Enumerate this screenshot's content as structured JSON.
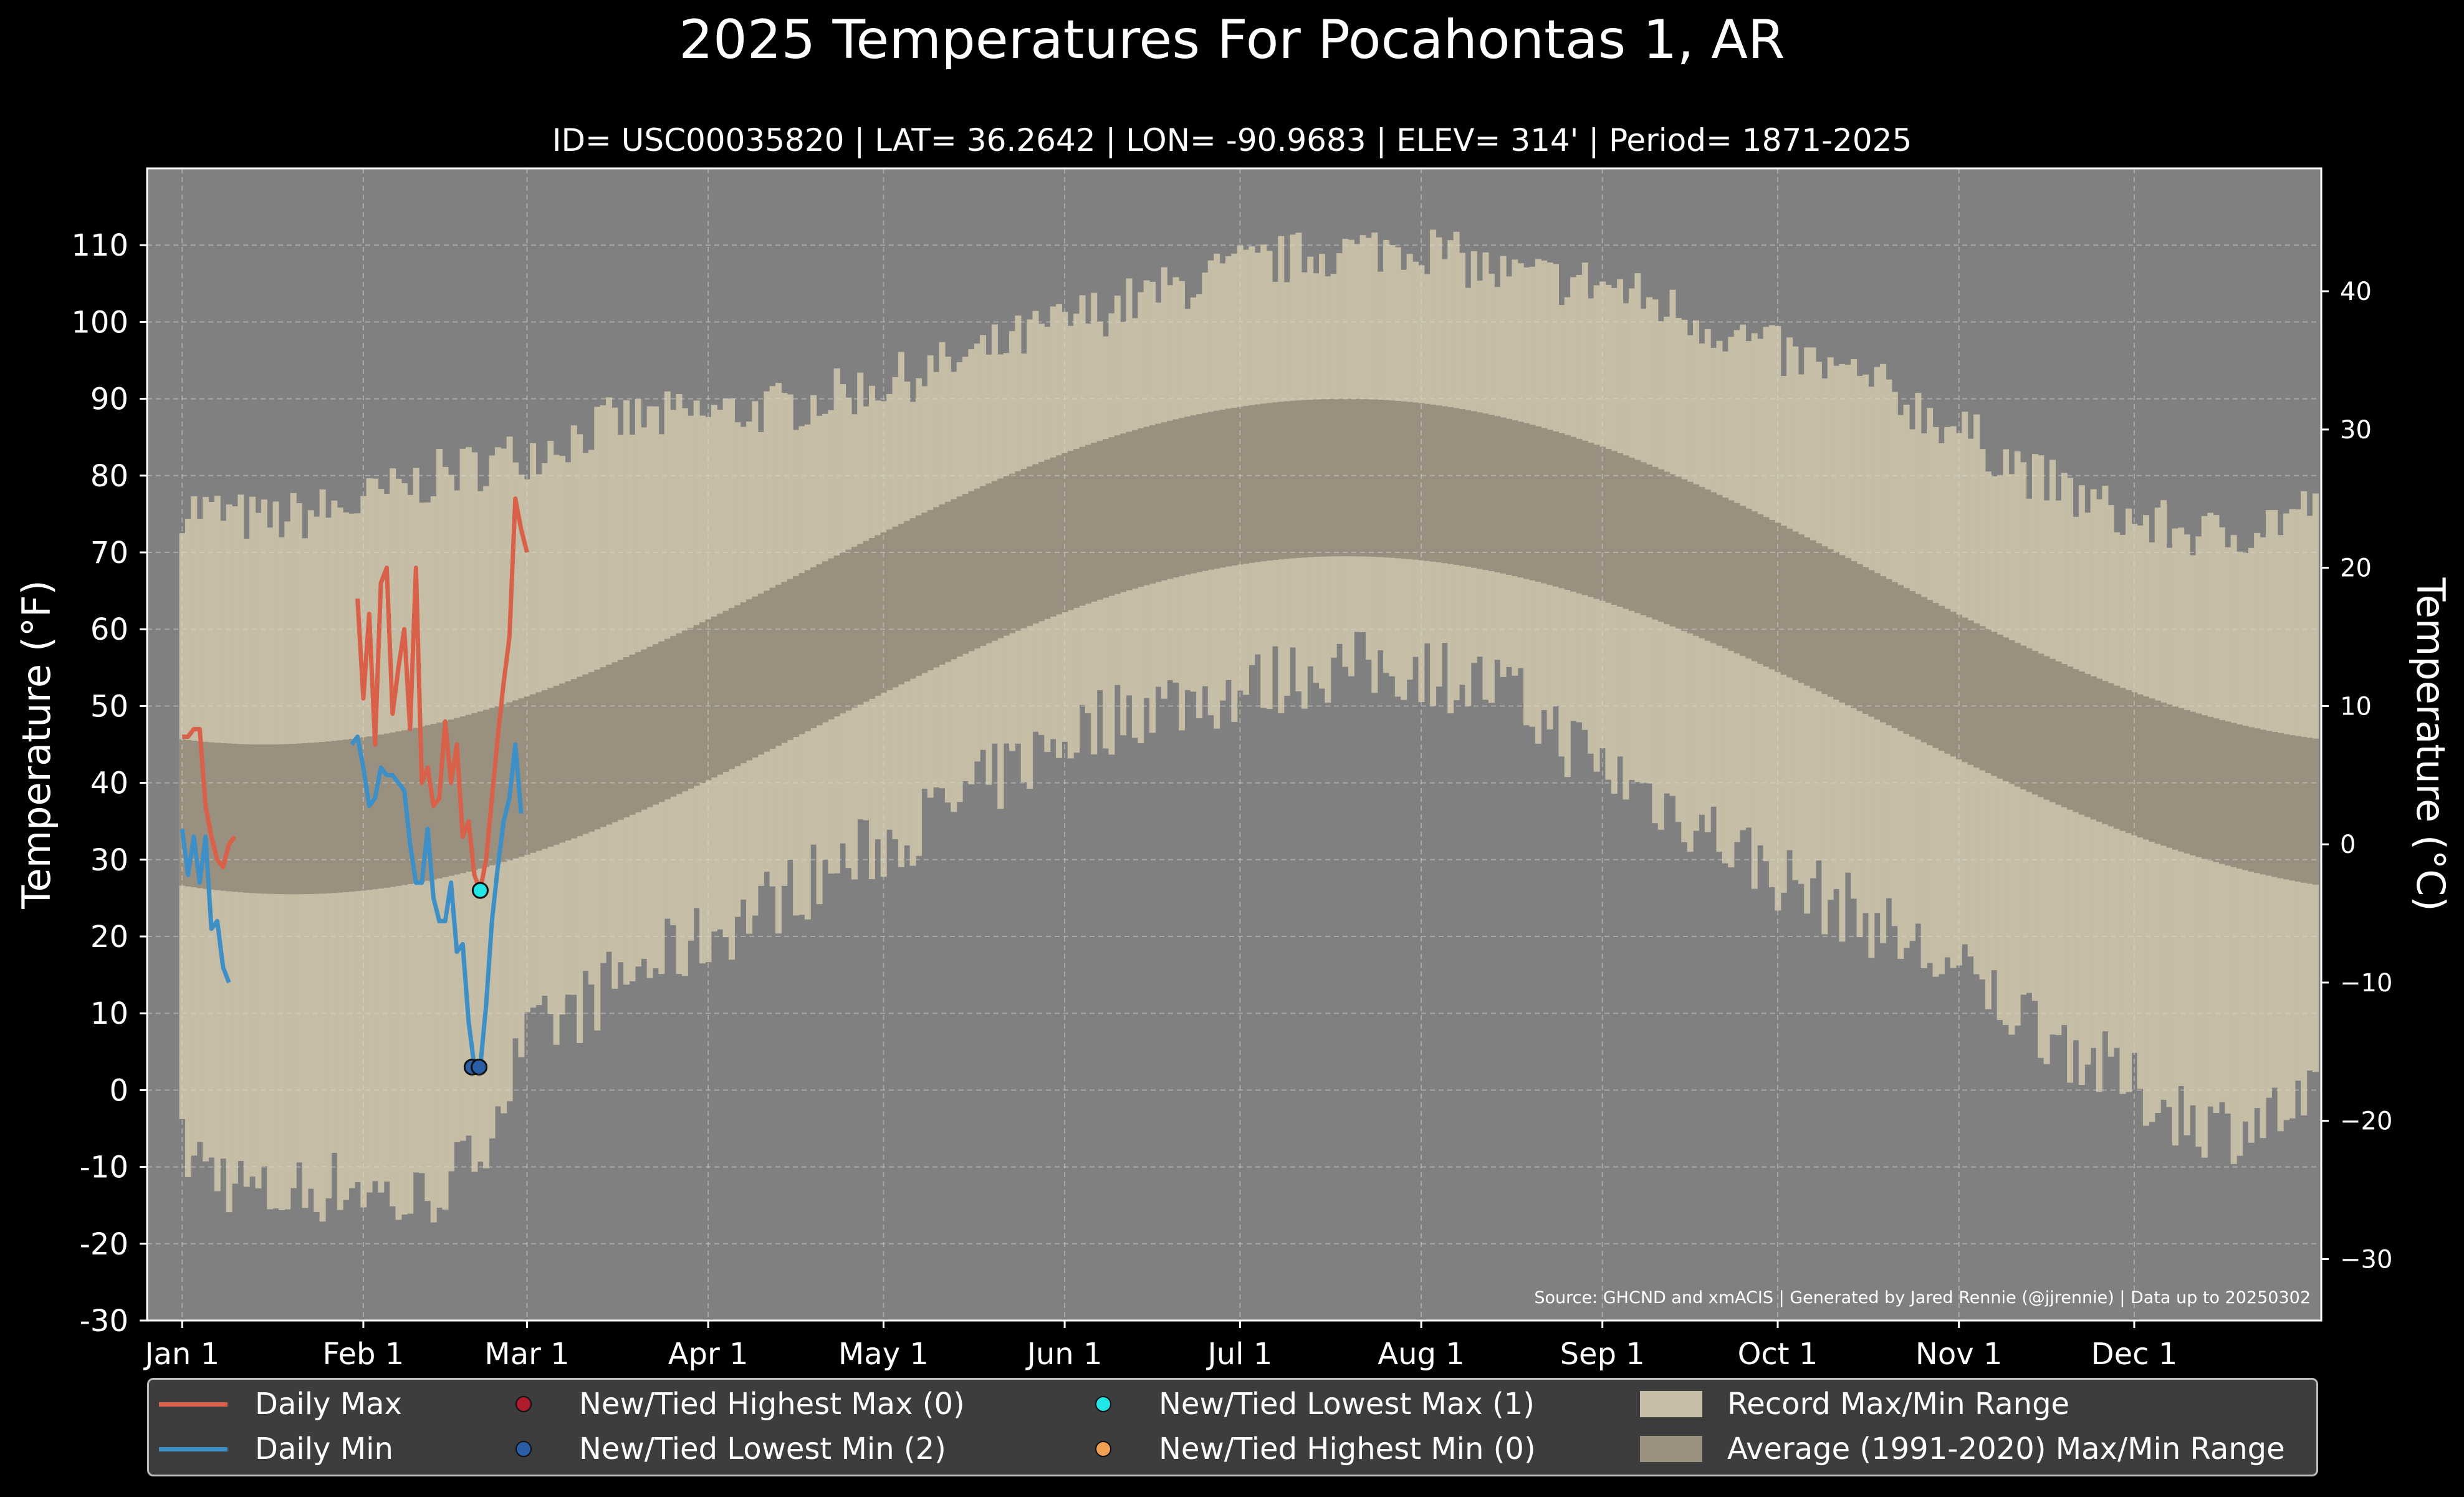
{
  "title": "2025 Temperatures For Pocahontas 1, AR",
  "subtitle": "ID= USC00035820 | LAT= 36.2642 | LON= -90.9683 | ELEV= 314' | Period= 1871-2025",
  "source": "Source: GHCND and xmACIS | Generated by Jared Rennie (@jjrennie) | Data up to 20250302",
  "colors": {
    "background": "#000000",
    "plot_bg": "#808080",
    "record_range": "#c5bda5",
    "average_range": "#999080",
    "daily_max": "#d9614a",
    "daily_min": "#3f8fc7",
    "new_highest_max": "#b01c2e",
    "new_lowest_min": "#2a5fa8",
    "new_lowest_max": "#22e6e6",
    "new_highest_min": "#f0a050",
    "legend_bg": "#3d3d3d"
  },
  "legend": {
    "daily_max": "Daily Max",
    "daily_min": "Daily Min",
    "new_highest_max": "New/Tied Highest Max (0)",
    "new_lowest_min": "New/Tied Lowest Min (2)",
    "new_lowest_max": "New/Tied Lowest Max (1)",
    "new_highest_min": "New/Tied Highest Min (0)",
    "record_range": "Record Max/Min Range",
    "average_range": "Average (1991-2020) Max/Min Range"
  },
  "chart_data": {
    "type": "line",
    "ylabel": "Temperature ($^\\circ$F)",
    "ylabel_display": "Temperature (°F)",
    "ylabel_right": "Temperature (°C)",
    "ylim": [
      -30,
      120
    ],
    "yticks": [
      "110",
      "100",
      "90",
      "80",
      "70",
      "60",
      "50",
      "40",
      "30",
      "20",
      "10",
      "0",
      "-10",
      "-20",
      "-30"
    ],
    "yticks_right": [
      "40",
      "30",
      "20",
      "10",
      "0",
      "−10",
      "−20",
      "−30"
    ],
    "xlim_day": [
      -5,
      367
    ],
    "xtick_labels": [
      "Jan 1",
      "Feb 1",
      "Mar 1",
      "Apr 1",
      "May 1",
      "Jun 1",
      "Jul 1",
      "Aug 1",
      "Sep 1",
      "Oct 1",
      "Nov 1",
      "Dec 1"
    ],
    "xtick_days": [
      1,
      32,
      60,
      91,
      121,
      152,
      182,
      213,
      244,
      274,
      305,
      335
    ],
    "grid": true,
    "legend_position": "bottom",
    "record_max_keypoints": [
      [
        1,
        76
      ],
      [
        15,
        74
      ],
      [
        30,
        76
      ],
      [
        45,
        80
      ],
      [
        60,
        83
      ],
      [
        75,
        87
      ],
      [
        91,
        88
      ],
      [
        105,
        89
      ],
      [
        121,
        92
      ],
      [
        135,
        95
      ],
      [
        152,
        100
      ],
      [
        165,
        103
      ],
      [
        182,
        107
      ],
      [
        196,
        109
      ],
      [
        213,
        110
      ],
      [
        227,
        106
      ],
      [
        244,
        105
      ],
      [
        258,
        101
      ],
      [
        274,
        96
      ],
      [
        290,
        92
      ],
      [
        305,
        86
      ],
      [
        320,
        79
      ],
      [
        335,
        74
      ],
      [
        350,
        72
      ],
      [
        366,
        76
      ]
    ],
    "record_min_keypoints": [
      [
        1,
        -8
      ],
      [
        15,
        -14
      ],
      [
        30,
        -12
      ],
      [
        40,
        -15
      ],
      [
        50,
        -10
      ],
      [
        60,
        6
      ],
      [
        75,
        14
      ],
      [
        91,
        20
      ],
      [
        105,
        26
      ],
      [
        121,
        32
      ],
      [
        135,
        38
      ],
      [
        152,
        46
      ],
      [
        165,
        50
      ],
      [
        182,
        52
      ],
      [
        196,
        55
      ],
      [
        213,
        55
      ],
      [
        227,
        52
      ],
      [
        244,
        42
      ],
      [
        258,
        36
      ],
      [
        274,
        28
      ],
      [
        290,
        22
      ],
      [
        305,
        15
      ],
      [
        320,
        8
      ],
      [
        335,
        0
      ],
      [
        350,
        -5
      ],
      [
        366,
        -2
      ]
    ],
    "average_max": {
      "min": 45,
      "max": 90,
      "min_day": 15,
      "max_day": 200
    },
    "average_min": {
      "min": 25.5,
      "max": 69.5,
      "min_day": 20,
      "max_day": 200
    },
    "series": [
      {
        "name": "Daily Max",
        "segments": [
          {
            "start_day": 1,
            "values": [
              46,
              46,
              47,
              47,
              37,
              33,
              30,
              29,
              32,
              33
            ]
          },
          {
            "start_day": 31,
            "values": [
              64,
              51,
              62,
              45,
              66,
              68,
              49,
              55,
              60,
              47,
              68,
              40,
              42,
              37,
              38,
              48,
              40,
              45,
              33,
              35,
              28,
              26,
              30,
              38,
              46,
              53,
              59,
              77,
              73,
              70
            ]
          }
        ]
      },
      {
        "name": "Daily Min",
        "segments": [
          {
            "start_day": 1,
            "values": [
              34,
              28,
              33,
              27,
              33,
              21,
              22,
              16,
              14
            ]
          },
          {
            "start_day": 30,
            "values": [
              45,
              46,
              42,
              37,
              38,
              42,
              41,
              41,
              40,
              39,
              32,
              27,
              27,
              34,
              25,
              22,
              22,
              27,
              18,
              19,
              9,
              3,
              3,
              11,
              22,
              29,
              35,
              38,
              45,
              36
            ]
          }
        ]
      }
    ],
    "markers": [
      {
        "name": "New/Tied Lowest Min",
        "points": [
          [
            50.6,
            3
          ],
          [
            51.8,
            3
          ]
        ]
      },
      {
        "name": "New/Tied Lowest Max",
        "points": [
          [
            52,
            26
          ]
        ]
      }
    ]
  }
}
